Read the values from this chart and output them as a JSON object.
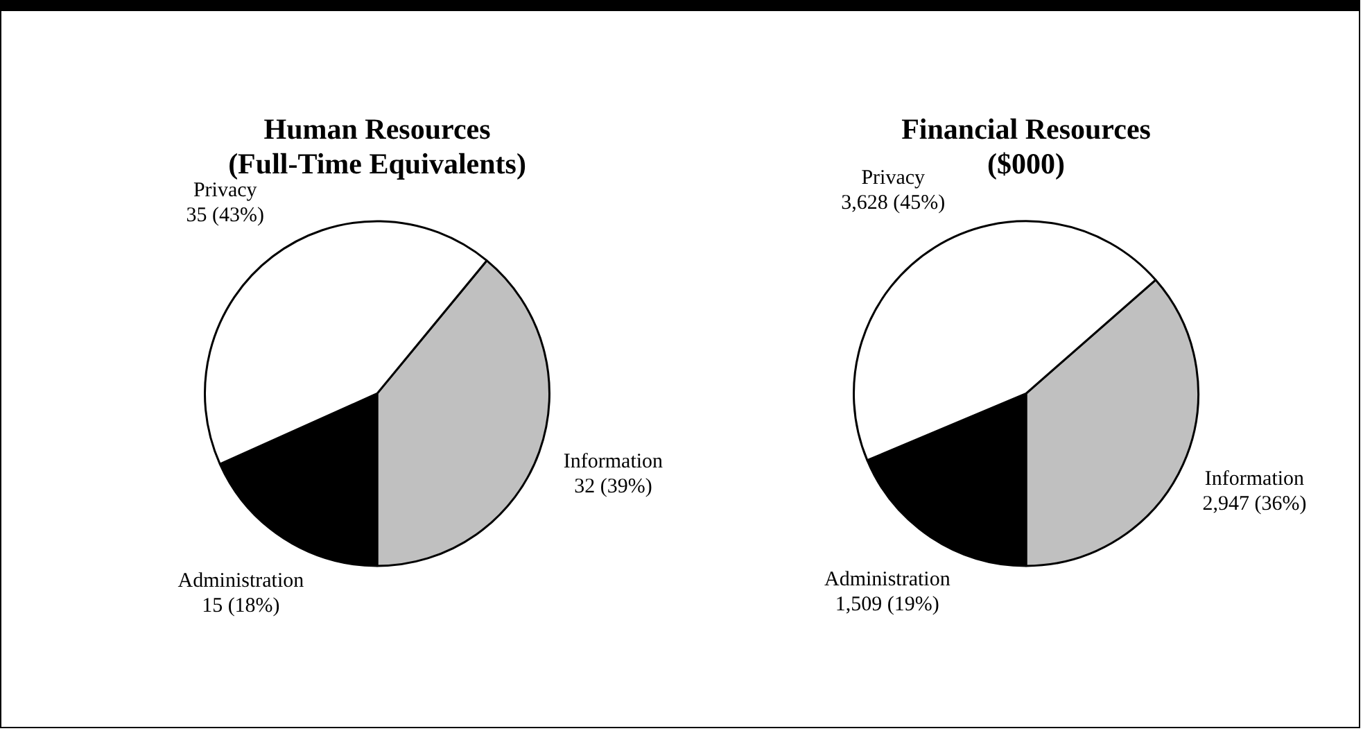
{
  "chart_data": [
    {
      "type": "pie",
      "title": "Human Resources\n(Full-Time Equivalents)",
      "categories": [
        "Information",
        "Administration",
        "Privacy"
      ],
      "values": [
        32,
        15,
        35
      ],
      "value_labels": [
        "32 (39%)",
        "15 (18%)",
        "35 (43%)"
      ],
      "colors": [
        "#c0c0c0",
        "#000000",
        "#ffffff"
      ]
    },
    {
      "type": "pie",
      "title": "Financial Resources\n($000)",
      "categories": [
        "Information",
        "Administration",
        "Privacy"
      ],
      "values": [
        2947,
        1509,
        3628
      ],
      "value_labels": [
        "2,947 (36%)",
        "1,509 (19%)",
        "3,628 (45%)"
      ],
      "colors": [
        "#c0c0c0",
        "#000000",
        "#ffffff"
      ]
    }
  ]
}
